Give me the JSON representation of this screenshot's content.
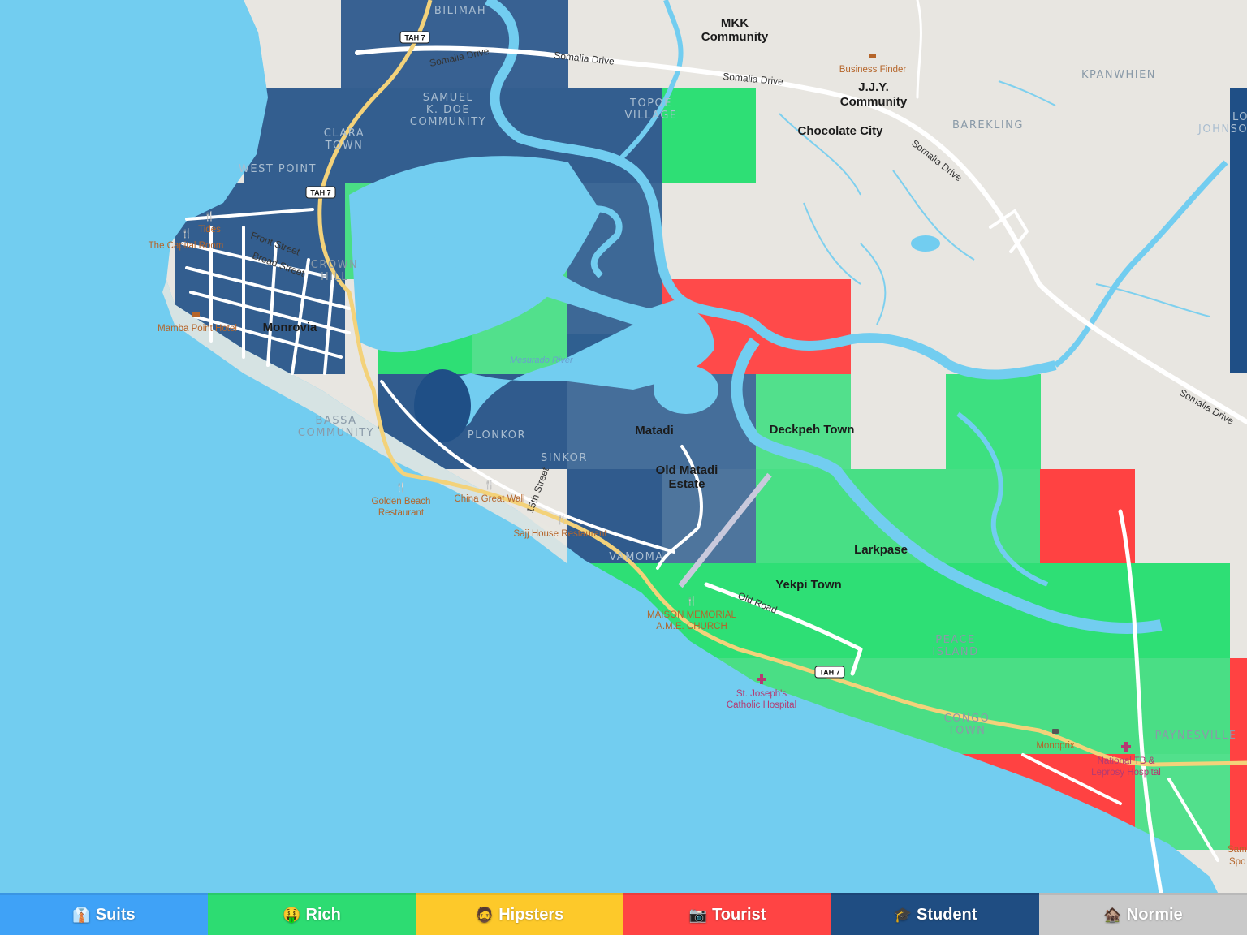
{
  "map": {
    "colors": {
      "land": "#e8e6e1",
      "water": "#72cdf0",
      "student": "#1f4f86",
      "rich": "#2edf75",
      "tourist": "#ff4242",
      "road": "#ffffff",
      "highway": "#f3d27a"
    },
    "places": {
      "mkk_line1": "MKK",
      "mkk_line2": "Community",
      "jjy_line1": "J.J.Y.",
      "jjy_line2": "Community",
      "chocolate_city": "Chocolate City",
      "monrovia": "Monrovia",
      "matadi": "Matadi",
      "old_matadi_line1": "Old Matadi",
      "old_matadi_line2": "Estate",
      "deckpeh_town": "Deckpeh Town",
      "larkpase": "Larkpase",
      "yekpi_town": "Yekpi Town"
    },
    "neighborhoods": {
      "bilimah": "BILIMAH",
      "samuel_line1": "SAMUEL",
      "samuel_line2": "K. DOE",
      "samuel_line3": "COMMUNITY",
      "topoe_line1": "TOPOE",
      "topoe_line2": "VILLAGE",
      "clara_line1": "CLARA",
      "clara_line2": "TOWN",
      "west_point": "WEST POINT",
      "crown_line1": "CROWN",
      "crown_line2": "HILL",
      "bassa_line1": "BASSA",
      "bassa_line2": "COMMUNITY",
      "plonkor": "PLONKOR",
      "sinkor": "SINKOR",
      "vamoma": "VAMOMA",
      "peace_line1": "PEACE",
      "peace_line2": "ISLAND",
      "congo_line1": "CONGO",
      "congo_line2": "TOWN",
      "paynesville": "PAYNESVILLE",
      "kpanwhien": "KPANWHIEN",
      "barekling": "BAREKLING",
      "low_line1": "LOW",
      "low_line2": "JOHNSON"
    },
    "roads": {
      "somalia_drive": "Somalia Drive",
      "front_street": "Front Street",
      "broad_street": "Broad Street",
      "fifteenth_street": "15th Street",
      "old_road": "Old Road",
      "tah7": "TAH 7"
    },
    "river": "Mesurado River",
    "pois": {
      "business_finder": "Business Finder",
      "tides": "Tides",
      "capital_room": "The Capital Room",
      "mamba_point": "Mamba Point Hotel",
      "golden_beach_line1": "Golden Beach",
      "golden_beach_line2": "Restaurant",
      "china_great_wall": "China Great Wall",
      "sajj_house": "Sajj House Restaurant",
      "maison_line1": "MAISON MEMORIAL",
      "maison_line2": "A.M.E. CHURCH",
      "st_joseph_line1": "St. Joseph's",
      "st_joseph_line2": "Catholic Hospital",
      "monoprix": "Monoprix",
      "national_tb_line1": "National TB &",
      "national_tb_line2": "Leprosy Hospital",
      "samu_line1": "Samu",
      "samu_line2": "Spo"
    }
  },
  "legend": [
    {
      "emoji": "👔",
      "label": "Suits",
      "color": "#3fa2f7"
    },
    {
      "emoji": "🤑",
      "label": "Rich",
      "color": "#2ddc72"
    },
    {
      "emoji": "🧔",
      "label": "Hipsters",
      "color": "#fdc92a"
    },
    {
      "emoji": "📷",
      "label": "Tourist",
      "color": "#ff4444"
    },
    {
      "emoji": "🎓",
      "label": "Student",
      "color": "#1f4d82"
    },
    {
      "emoji": "🏚️",
      "label": "Normie",
      "color": "#c9c9c9"
    }
  ]
}
